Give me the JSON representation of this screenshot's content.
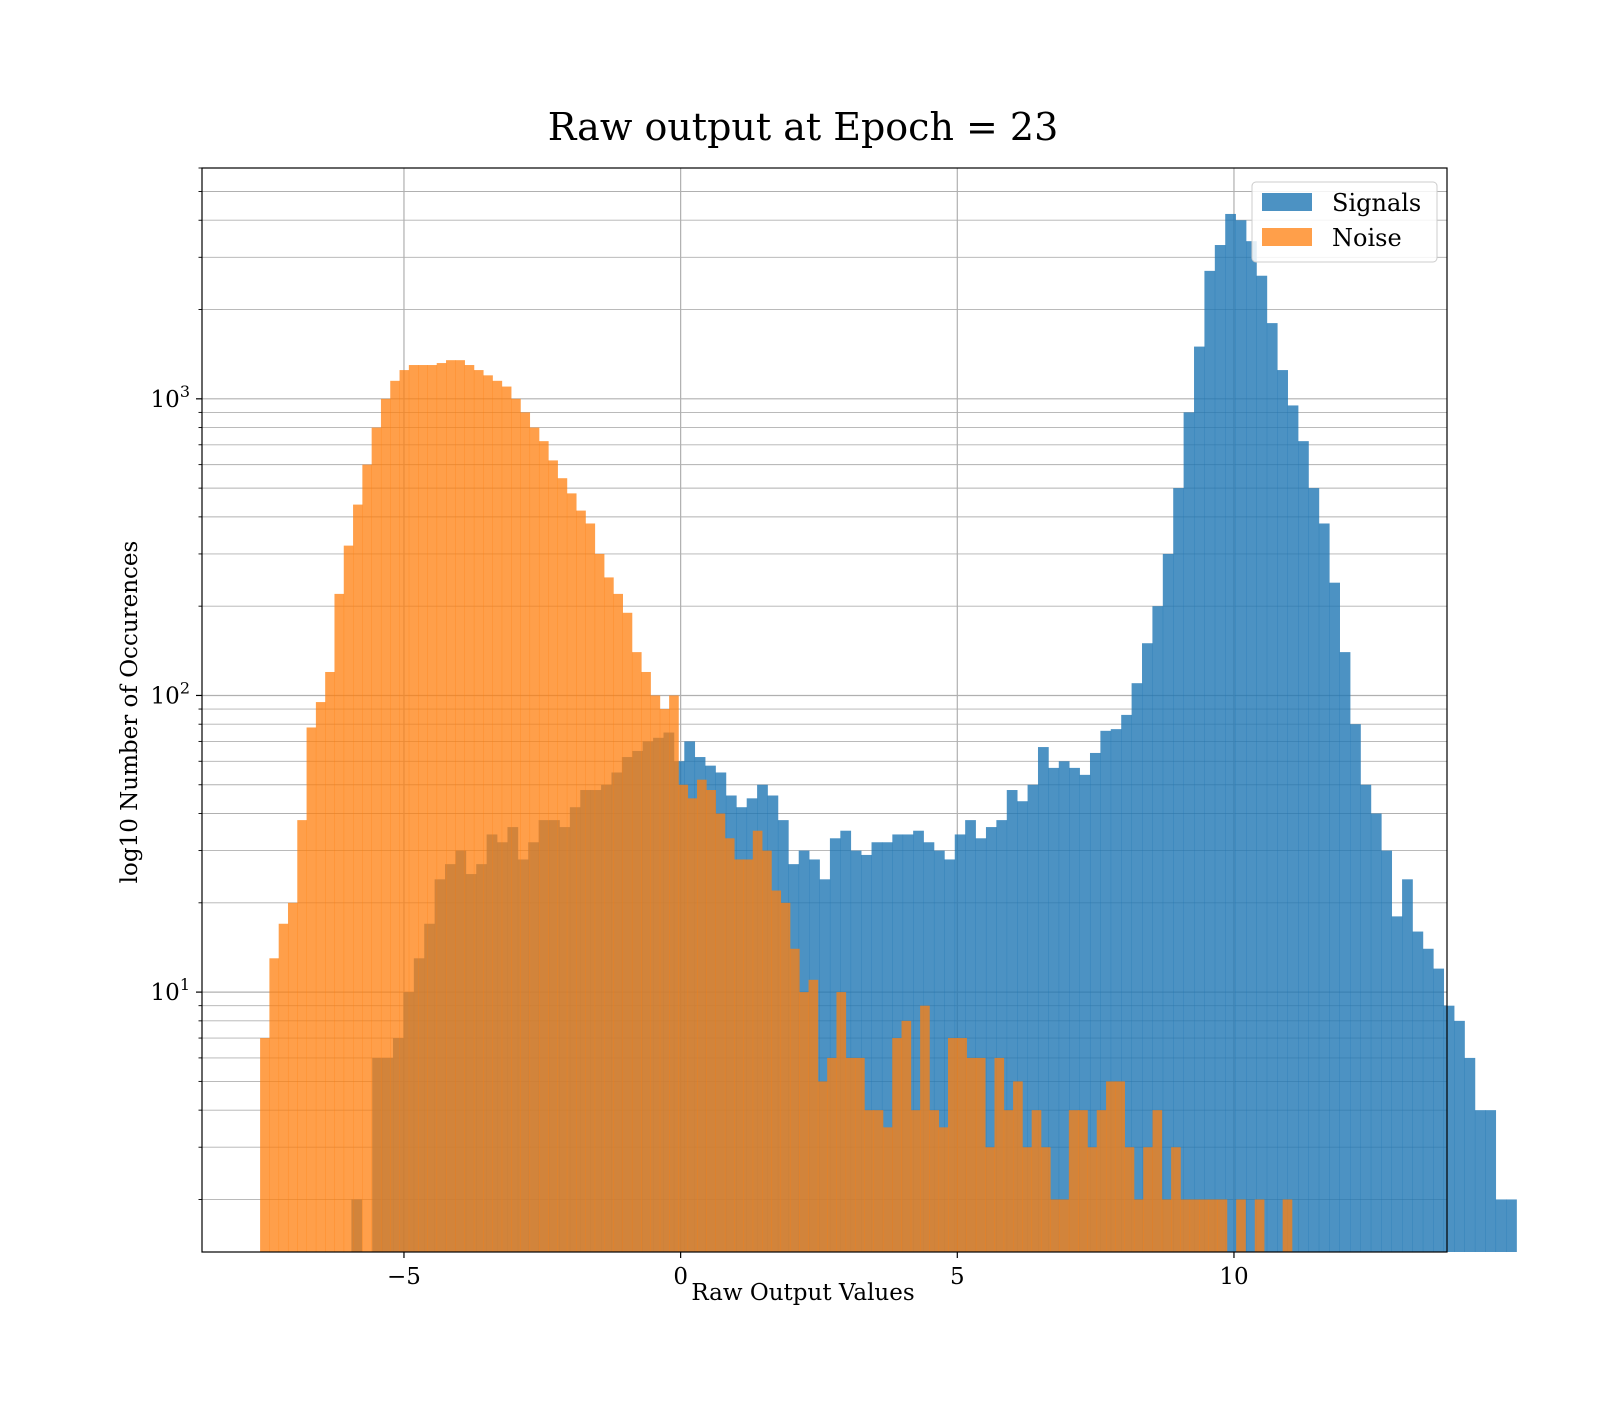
{
  "chart_data": {
    "type": "bar",
    "title": "Raw output at Epoch = 23",
    "xlabel": "Raw Output Values",
    "ylabel": "log10 Number of Occurences",
    "yscale": "log",
    "xlim": [
      -8.65,
      13.85
    ],
    "ylim": [
      1.33,
      6000
    ],
    "grid": true,
    "legend_position": "top-right",
    "x_ticks": [
      -5,
      0,
      5,
      10
    ],
    "x_tick_labels": [
      "−5",
      "0",
      "5",
      "10"
    ],
    "y_ticks": [
      10,
      100,
      1000
    ],
    "y_tick_labels": [
      {
        "base": "10",
        "exp": "1"
      },
      {
        "base": "10",
        "exp": "2"
      },
      {
        "base": "10",
        "exp": "3"
      }
    ],
    "series": [
      {
        "name": "Noise",
        "color": "#ff7f0e",
        "opacity": 0.75,
        "bin_start": -7.6,
        "bin_width": 0.168,
        "values": [
          7,
          13,
          17,
          20,
          38,
          78,
          95,
          120,
          220,
          320,
          440,
          600,
          800,
          1000,
          1150,
          1250,
          1300,
          1300,
          1300,
          1320,
          1350,
          1350,
          1300,
          1250,
          1200,
          1150,
          1100,
          1000,
          900,
          800,
          720,
          620,
          540,
          480,
          420,
          380,
          300,
          250,
          220,
          190,
          140,
          120,
          100,
          90,
          100,
          50,
          45,
          52,
          48,
          40,
          33,
          28,
          28,
          35,
          30,
          22,
          20,
          14,
          10,
          11,
          5,
          6,
          10,
          6,
          6,
          4,
          4,
          3.5,
          7,
          8,
          4,
          9,
          4,
          3.5,
          7,
          7,
          6,
          6,
          3,
          6,
          4,
          5,
          3,
          4,
          3,
          2,
          2,
          4,
          4,
          3,
          4,
          5,
          5,
          3,
          2,
          3,
          4,
          2,
          3,
          2,
          2,
          2,
          2,
          2,
          1.33,
          2,
          1.33,
          2,
          1.33,
          1.33,
          2,
          1.33
        ]
      },
      {
        "name": "Signals",
        "color": "#1f77b4",
        "opacity": 0.8,
        "bin_start": -5.95,
        "bin_width": 0.188,
        "values": [
          2,
          1.33,
          6,
          6,
          7,
          10,
          13,
          17,
          24,
          27,
          30,
          25,
          27,
          34,
          32,
          36,
          28,
          32,
          38,
          38,
          36,
          42,
          48,
          48,
          50,
          55,
          62,
          65,
          70,
          72,
          75,
          60,
          70,
          62,
          58,
          55,
          46,
          42,
          45,
          50,
          46,
          38,
          27,
          30,
          28,
          24,
          33,
          35,
          30,
          29,
          32,
          32,
          34,
          34,
          35,
          32,
          30,
          28,
          34,
          38,
          33,
          36,
          38,
          48,
          44,
          50,
          67,
          57,
          60,
          57,
          54,
          64,
          76,
          77,
          86,
          110,
          150,
          200,
          300,
          500,
          900,
          1500,
          2700,
          3300,
          4200,
          4000,
          3400,
          2600,
          1800,
          1250,
          950,
          720,
          500,
          380,
          240,
          140,
          80,
          50,
          40,
          30,
          18,
          24,
          16,
          14,
          12,
          9,
          8,
          6,
          4,
          4,
          2,
          2
        ]
      }
    ]
  }
}
